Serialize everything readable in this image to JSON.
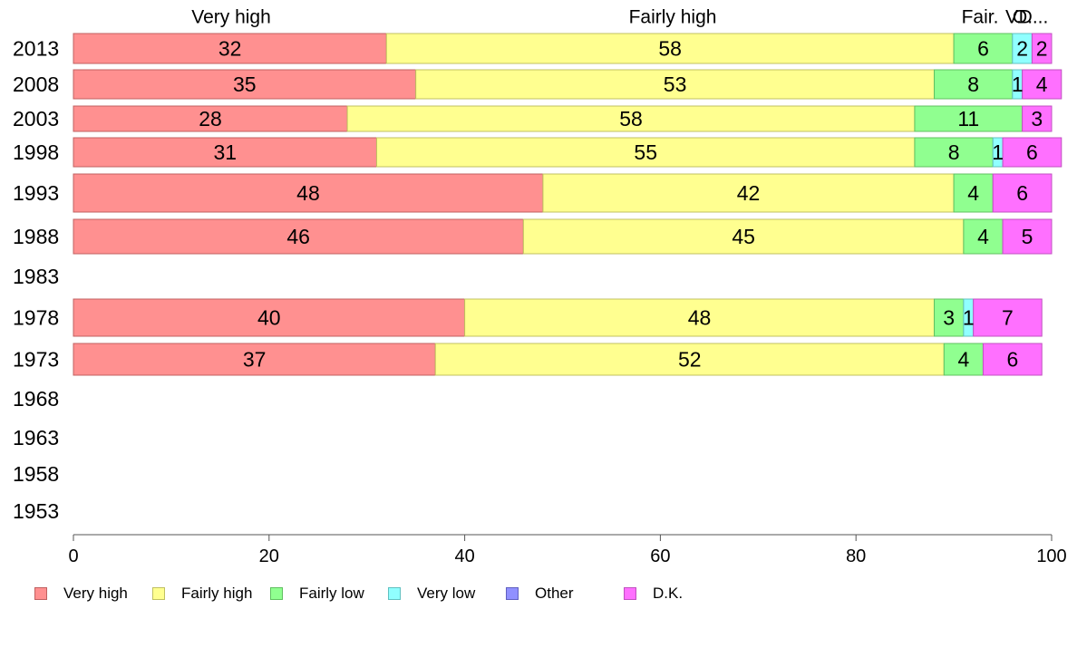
{
  "chart_data": {
    "type": "bar",
    "orientation": "horizontal",
    "stacked": true,
    "categories": [
      "2013",
      "2008",
      "2003",
      "1998",
      "1993",
      "1988",
      "1983",
      "1978",
      "1973",
      "1968",
      "1963",
      "1958",
      "1953"
    ],
    "series": [
      {
        "name": "Very high",
        "color": "#ff9090",
        "values": [
          32,
          35,
          28,
          31,
          48,
          46,
          null,
          40,
          37,
          null,
          null,
          null,
          null
        ]
      },
      {
        "name": "Fairly high",
        "color": "#ffff90",
        "values": [
          58,
          53,
          58,
          55,
          42,
          45,
          null,
          48,
          52,
          null,
          null,
          null,
          null
        ]
      },
      {
        "name": "Fairly low",
        "color": "#90ff90",
        "values": [
          6,
          8,
          11,
          8,
          4,
          4,
          null,
          3,
          4,
          null,
          null,
          null,
          null
        ]
      },
      {
        "name": "Very low",
        "color": "#90ffff",
        "values": [
          2,
          1,
          0,
          1,
          0,
          0,
          null,
          1,
          0,
          null,
          null,
          null,
          null
        ]
      },
      {
        "name": "Other",
        "color": "#9090ff",
        "values": [
          0,
          0,
          0,
          0,
          0,
          0,
          null,
          0,
          0,
          null,
          null,
          null,
          null
        ]
      },
      {
        "name": "D.K.",
        "color": "#ff70ff",
        "values": [
          2,
          4,
          3,
          6,
          6,
          5,
          null,
          7,
          6,
          null,
          null,
          null,
          null
        ]
      }
    ],
    "top_labels": [
      "Very high",
      "Fairly high",
      "Fair.",
      "V.",
      "O.",
      "D..."
    ],
    "xlim": [
      0,
      100
    ],
    "xticks": [
      "0",
      "20",
      "40",
      "60",
      "80",
      "100"
    ],
    "legend_position": "bottom-left",
    "grid": false
  }
}
